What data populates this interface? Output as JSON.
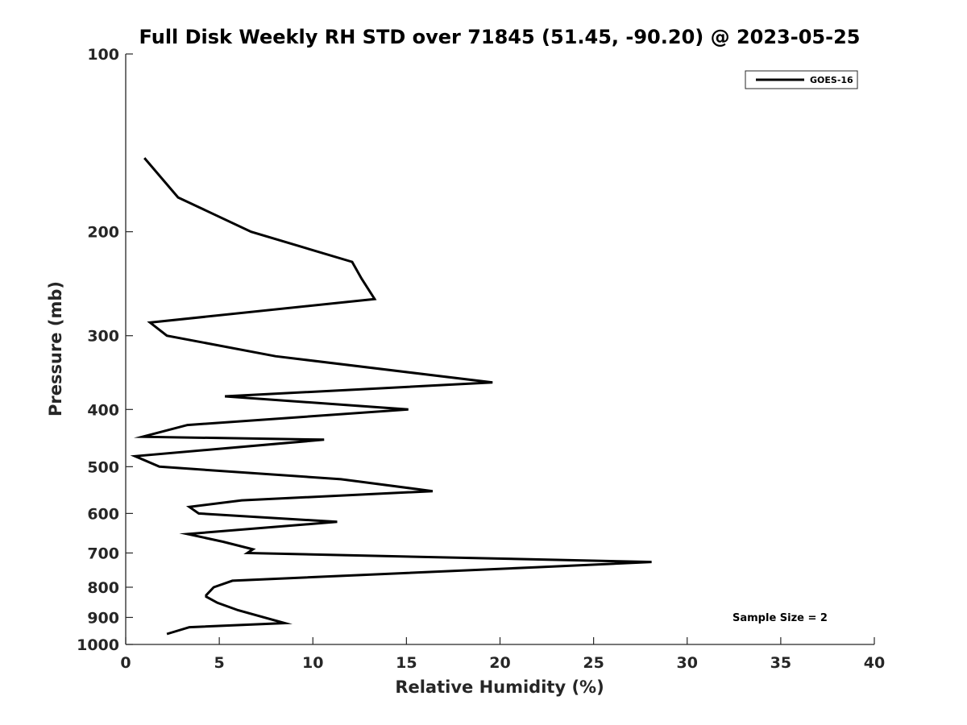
{
  "chart_data": {
    "type": "line",
    "title": "Full Disk Weekly RH STD over 71845 (51.45, -90.20) @ 2023-05-25",
    "xlabel": "Relative Humidity (%)",
    "ylabel": "Pressure (mb)",
    "xlim": [
      0,
      40
    ],
    "ylim": [
      100,
      1000
    ],
    "y_scale": "log",
    "y_direction": "reversed",
    "x_ticks": [
      0,
      5,
      10,
      15,
      20,
      25,
      30,
      35,
      40
    ],
    "y_ticks": [
      100,
      200,
      300,
      400,
      500,
      600,
      700,
      800,
      900,
      1000
    ],
    "grid": false,
    "legend_position": "top-right",
    "annotation": "Sample Size = 2",
    "series": [
      {
        "name": "GOES-16",
        "color": "#000000",
        "points": [
          {
            "x": 1.0,
            "y": 150
          },
          {
            "x": 2.8,
            "y": 175
          },
          {
            "x": 6.7,
            "y": 200
          },
          {
            "x": 12.1,
            "y": 225
          },
          {
            "x": 12.6,
            "y": 240
          },
          {
            "x": 13.3,
            "y": 260
          },
          {
            "x": 1.3,
            "y": 285
          },
          {
            "x": 2.2,
            "y": 300
          },
          {
            "x": 8.0,
            "y": 325
          },
          {
            "x": 19.6,
            "y": 360
          },
          {
            "x": 5.3,
            "y": 380
          },
          {
            "x": 15.1,
            "y": 400
          },
          {
            "x": 3.3,
            "y": 425
          },
          {
            "x": 0.9,
            "y": 445
          },
          {
            "x": 10.6,
            "y": 450
          },
          {
            "x": 0.5,
            "y": 480
          },
          {
            "x": 1.8,
            "y": 500
          },
          {
            "x": 11.5,
            "y": 525
          },
          {
            "x": 12.5,
            "y": 530
          },
          {
            "x": 16.4,
            "y": 550
          },
          {
            "x": 6.2,
            "y": 570
          },
          {
            "x": 3.4,
            "y": 585
          },
          {
            "x": 3.9,
            "y": 600
          },
          {
            "x": 11.3,
            "y": 620
          },
          {
            "x": 3.3,
            "y": 650
          },
          {
            "x": 5.2,
            "y": 670
          },
          {
            "x": 6.8,
            "y": 690
          },
          {
            "x": 6.5,
            "y": 700
          },
          {
            "x": 28.1,
            "y": 725
          },
          {
            "x": 22.0,
            "y": 740
          },
          {
            "x": 5.7,
            "y": 780
          },
          {
            "x": 4.7,
            "y": 800
          },
          {
            "x": 4.3,
            "y": 825
          },
          {
            "x": 4.3,
            "y": 830
          },
          {
            "x": 4.9,
            "y": 850
          },
          {
            "x": 6.0,
            "y": 875
          },
          {
            "x": 8.5,
            "y": 920
          },
          {
            "x": 3.4,
            "y": 935
          },
          {
            "x": 2.2,
            "y": 960
          }
        ]
      }
    ]
  }
}
